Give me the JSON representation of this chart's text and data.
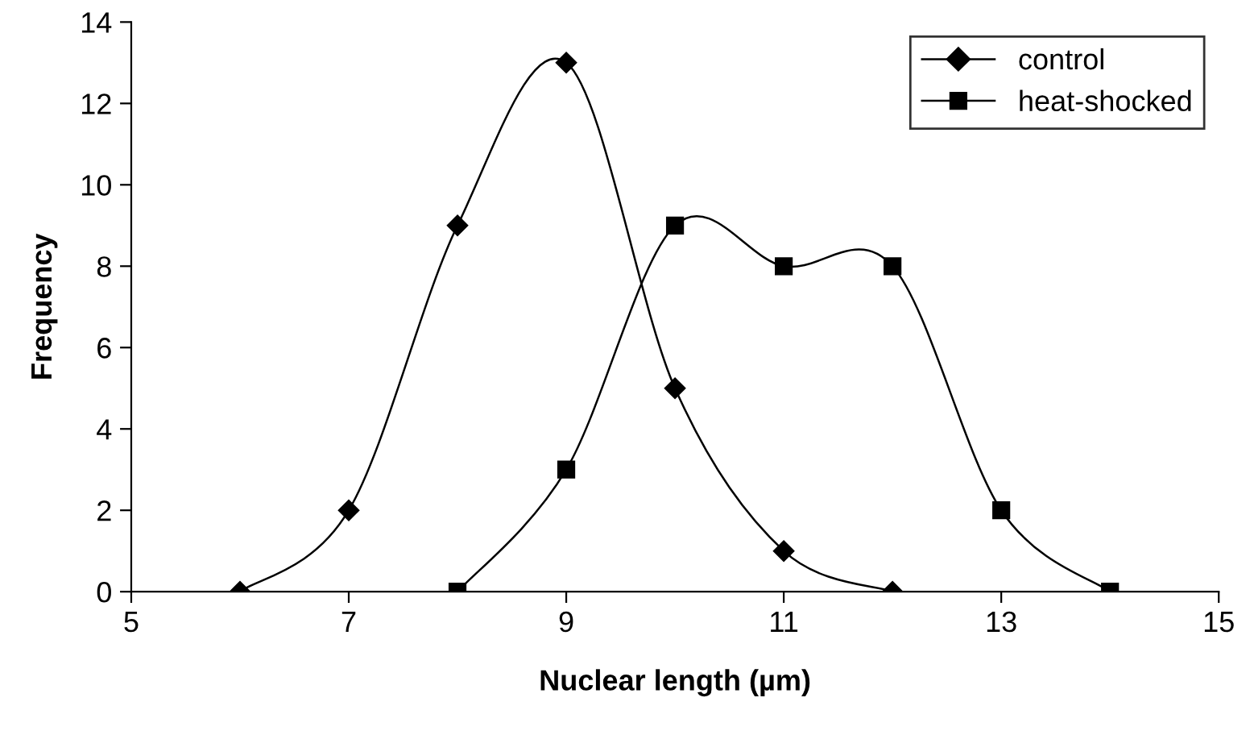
{
  "chart_data": {
    "type": "line",
    "xlabel": "Nuclear length (µm)",
    "ylabel": "Frequency",
    "series": [
      {
        "name": "control",
        "color": "#000000",
        "marker": "diamond",
        "x": [
          6,
          7,
          8,
          9,
          10,
          11,
          12
        ],
        "values": [
          0,
          2,
          9,
          13,
          5,
          1,
          0
        ]
      },
      {
        "name": "heat-shocked",
        "color": "#000000",
        "marker": "square",
        "x": [
          8,
          9,
          10,
          11,
          12,
          13,
          14
        ],
        "values": [
          0,
          3,
          9,
          8,
          8,
          2,
          0
        ]
      }
    ],
    "xlim": [
      5,
      15
    ],
    "xticks": [
      5,
      7,
      9,
      11,
      13,
      15
    ],
    "ylim": [
      0,
      14
    ],
    "yticks": [
      0,
      2,
      4,
      6,
      8,
      10,
      12,
      14
    ],
    "grid": false,
    "legend": "top right",
    "line_style": "solid"
  }
}
